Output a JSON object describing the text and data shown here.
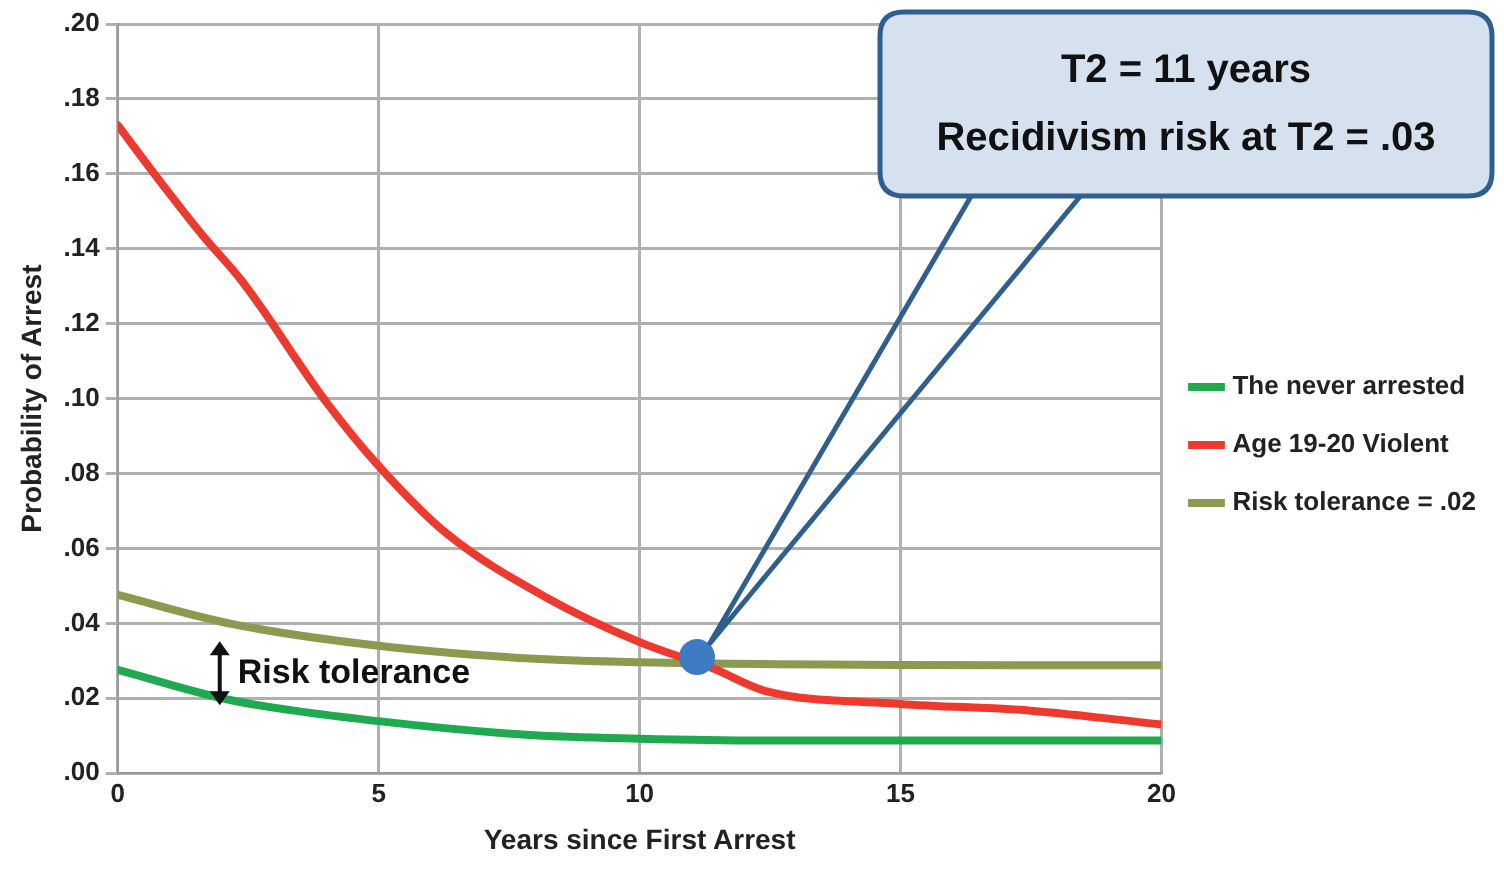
{
  "chart_data": {
    "type": "line",
    "xlabel": "Years since First Arrest",
    "ylabel": "Probability of Arrest",
    "xlim": [
      0,
      20
    ],
    "xticks": [
      0,
      5,
      10,
      15,
      20
    ],
    "ylim": [
      0,
      0.2
    ],
    "yticks": [
      {
        "value": 0,
        "label": ".00"
      },
      {
        "value": 0.02,
        "label": ".02"
      },
      {
        "value": 0.04,
        "label": ".04"
      },
      {
        "value": 0.06,
        "label": ".06"
      },
      {
        "value": 0.08,
        "label": ".08"
      },
      {
        "value": 0.1,
        "label": ".10"
      },
      {
        "value": 0.12,
        "label": ".12"
      },
      {
        "value": 0.14,
        "label": ".14"
      },
      {
        "value": 0.16,
        "label": ".16"
      },
      {
        "value": 0.18,
        "label": ".18"
      },
      {
        "value": 0.2,
        "label": ".20"
      }
    ],
    "grid": true,
    "legend": "right",
    "marker": "none",
    "series": [
      {
        "name": "The never arrested",
        "color": "#1faa4f",
        "x": [
          0,
          2.2,
          5,
          7.9,
          10,
          12.5,
          15,
          20
        ],
        "values": [
          0.0276,
          0.0194,
          0.0139,
          0.0102,
          0.0092,
          0.0087,
          0.0087,
          0.0087
        ]
      },
      {
        "name": "Age 19-20 Violent",
        "color": "#ee3a2e",
        "x": [
          0,
          0.7,
          1.6,
          2.4,
          4,
          5,
          6.3,
          8.2,
          10,
          11.4,
          12.4,
          15,
          17.5,
          20
        ],
        "values": [
          0.173,
          0.16,
          0.144,
          0.131,
          0.099,
          0.082,
          0.064,
          0.047,
          0.035,
          0.028,
          0.022,
          0.0185,
          0.0167,
          0.013
        ]
      },
      {
        "name": "Risk tolerance = .02",
        "color": "#8a9a4f",
        "x": [
          0,
          2.2,
          5,
          7.9,
          10,
          15,
          20
        ],
        "values": [
          0.0476,
          0.0398,
          0.034,
          0.0306,
          0.0296,
          0.0289,
          0.0288
        ]
      },
      {
        "type": "scatter",
        "color": "#3d7cc4",
        "marker": "circle",
        "x": [
          11.1
        ],
        "values": [
          0.031
        ]
      }
    ],
    "annotations": [
      "T2 = 11 years\nRecidivism risk at T2 = .03",
      "Risk tolerance"
    ]
  }
}
